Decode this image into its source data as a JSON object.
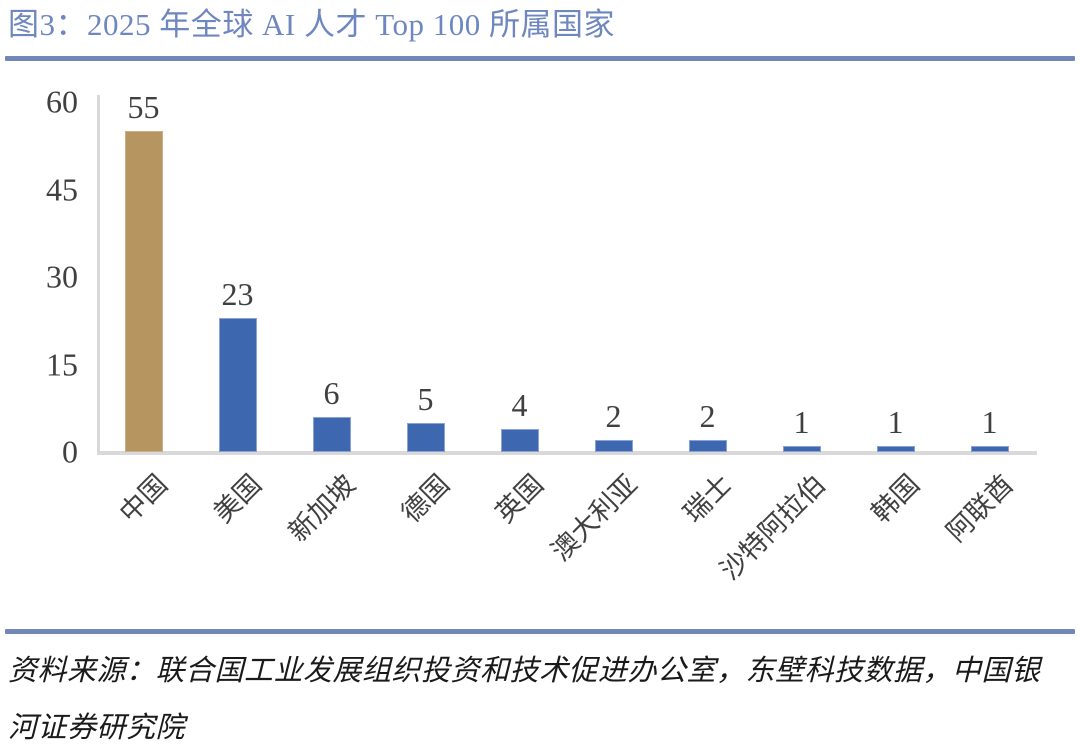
{
  "figure": {
    "title": "图3：2025 年全球 AI 人才 Top 100 所属国家",
    "source_line1": "资料来源：联合国工业发展组织投资和技术促进办公室，东壁科技数据，中国银",
    "source_line2": "河证券研究院"
  },
  "colors": {
    "title_text": "#6e87c0",
    "rule_blue": "#7187ba",
    "bar_highlight": "#b69560",
    "bar_highlight_border": "#c8af87",
    "bar_default": "#3d67af",
    "bar_default_border": "#8aa3d4",
    "axis_gray": "#d9d9d9",
    "number_text": "#404040",
    "source_text": "#1a1a1a"
  },
  "chart_data": {
    "type": "bar",
    "title": "图3：2025 年全球 AI 人才 Top 100 所属国家",
    "categories": [
      "中国",
      "美国",
      "新加坡",
      "德国",
      "英国",
      "澳大利亚",
      "瑞士",
      "沙特阿拉伯",
      "韩国",
      "阿联酋"
    ],
    "values": [
      55,
      23,
      6,
      5,
      4,
      2,
      2,
      1,
      1,
      1
    ],
    "highlight_index": 0,
    "show_value_labels": true,
    "yticks": [
      0,
      15,
      30,
      45,
      60
    ],
    "ylim": [
      0,
      60
    ],
    "xlabel": "",
    "ylabel": "",
    "grid": false,
    "legend": false,
    "category_label_rotation_deg": 45
  }
}
